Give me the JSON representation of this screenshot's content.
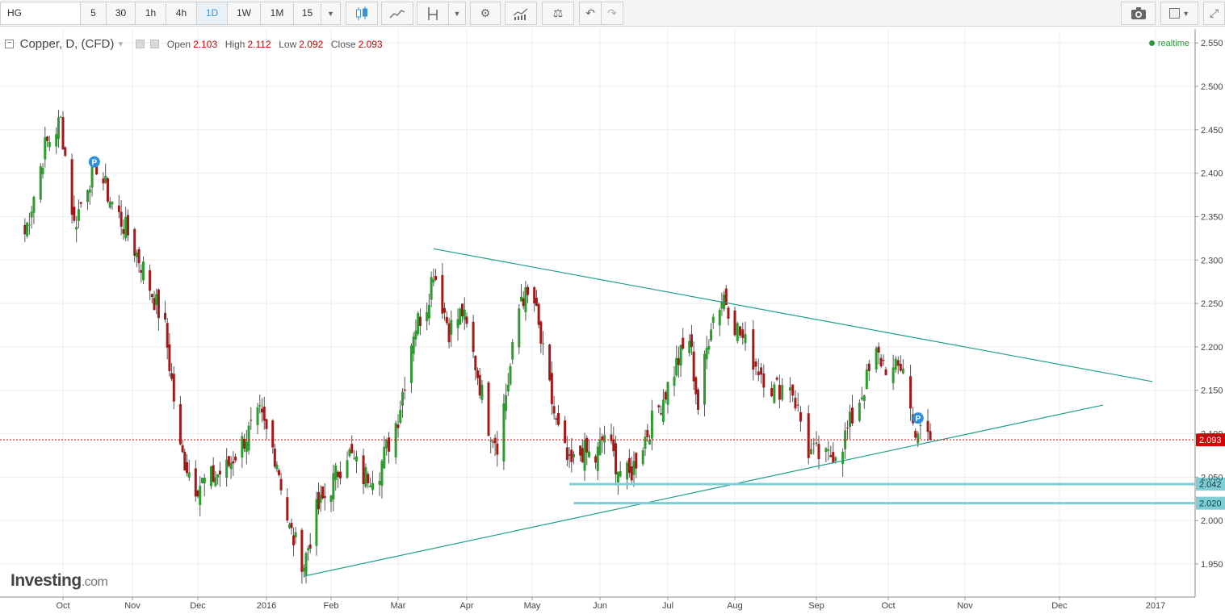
{
  "toolbar": {
    "symbol": "HG",
    "intervals": [
      "5",
      "30",
      "1h",
      "4h",
      "1D",
      "1W",
      "1M",
      "15"
    ],
    "active_interval": "1D",
    "accent": "#3a94d4"
  },
  "legend": {
    "title": "Copper, D, (CFD)",
    "open_label": "Open",
    "open": "2.103",
    "high_label": "High",
    "high": "2.112",
    "low_label": "Low",
    "low": "2.092",
    "close_label": "Close",
    "close": "2.093"
  },
  "status": {
    "realtime": "realtime"
  },
  "logo": {
    "name": "Investing",
    "suffix": ".com"
  },
  "chart_data": {
    "type": "candlestick",
    "price_axis": {
      "ticks": [
        "2.550",
        "2.500",
        "2.450",
        "2.400",
        "2.350",
        "2.300",
        "2.250",
        "2.200",
        "2.150",
        "2.100",
        "2.050",
        "2.000",
        "1.950"
      ],
      "ylim": [
        1.915,
        2.565
      ]
    },
    "time_axis": {
      "labels": [
        "Oct",
        "Nov",
        "Dec",
        "2016",
        "Feb",
        "Mar",
        "Apr",
        "May",
        "Jun",
        "Jul",
        "Aug",
        "Sep",
        "Oct",
        "Nov",
        "Dec",
        "2017"
      ]
    },
    "grid": true,
    "colors": {
      "up": "#2e9b2e",
      "down": "#a11a1a",
      "trendline": "#1d9e8c",
      "support": "#7fcdd5",
      "last_price": "#d50000"
    },
    "last_price": {
      "value": 2.093,
      "label": "2.093"
    },
    "support_levels": [
      {
        "value": 2.042,
        "label": "2.042",
        "from": "2016-05-18"
      },
      {
        "value": 2.02,
        "label": "2.020",
        "from": "2016-05-20"
      }
    ],
    "trendlines": [
      {
        "from": [
          "2016-03-17",
          2.313
        ],
        "to": [
          "2016-12-31",
          2.16
        ]
      },
      {
        "from": [
          "2016-01-19",
          1.936
        ],
        "to": [
          "2016-12-15",
          2.133
        ]
      }
    ],
    "markers": [
      {
        "label": "P",
        "date": "2015-10-15",
        "value": 2.413
      },
      {
        "label": "P",
        "date": "2016-10-13",
        "value": 2.118
      }
    ],
    "close_path": [
      [
        "2015-09-14",
        2.33
      ],
      [
        "2015-09-23",
        2.43
      ],
      [
        "2015-09-30",
        2.46
      ],
      [
        "2015-10-06",
        2.34
      ],
      [
        "2015-10-12",
        2.39
      ],
      [
        "2015-10-16",
        2.41
      ],
      [
        "2015-10-22",
        2.37
      ],
      [
        "2015-10-30",
        2.33
      ],
      [
        "2015-11-06",
        2.29
      ],
      [
        "2015-11-16",
        2.22
      ],
      [
        "2015-11-23",
        2.08
      ],
      [
        "2015-11-30",
        2.04
      ],
      [
        "2015-12-08",
        2.05
      ],
      [
        "2015-12-14",
        2.06
      ],
      [
        "2015-12-21",
        2.09
      ],
      [
        "2015-12-29",
        2.12
      ],
      [
        "2016-01-06",
        2.07
      ],
      [
        "2016-01-12",
        1.99
      ],
      [
        "2016-01-19",
        1.95
      ],
      [
        "2016-01-25",
        2.01
      ],
      [
        "2016-02-01",
        2.04
      ],
      [
        "2016-02-08",
        2.08
      ],
      [
        "2016-02-15",
        2.05
      ],
      [
        "2016-02-22",
        2.06
      ],
      [
        "2016-03-01",
        2.12
      ],
      [
        "2016-03-08",
        2.22
      ],
      [
        "2016-03-14",
        2.25
      ],
      [
        "2016-03-17",
        2.29
      ],
      [
        "2016-03-24",
        2.22
      ],
      [
        "2016-03-30",
        2.24
      ],
      [
        "2016-04-05",
        2.18
      ],
      [
        "2016-04-11",
        2.11
      ],
      [
        "2016-04-15",
        2.09
      ],
      [
        "2016-04-20",
        2.16
      ],
      [
        "2016-04-26",
        2.26
      ],
      [
        "2016-05-02",
        2.25
      ],
      [
        "2016-05-06",
        2.19
      ],
      [
        "2016-05-12",
        2.11
      ],
      [
        "2016-05-18",
        2.06
      ],
      [
        "2016-05-24",
        2.08
      ],
      [
        "2016-05-30",
        2.07
      ],
      [
        "2016-06-03",
        2.1
      ],
      [
        "2016-06-09",
        2.06
      ],
      [
        "2016-06-14",
        2.05
      ],
      [
        "2016-06-20",
        2.09
      ],
      [
        "2016-06-27",
        2.13
      ],
      [
        "2016-07-05",
        2.18
      ],
      [
        "2016-07-11",
        2.21
      ],
      [
        "2016-07-15",
        2.13
      ],
      [
        "2016-07-21",
        2.23
      ],
      [
        "2016-07-27",
        2.26
      ],
      [
        "2016-08-02",
        2.22
      ],
      [
        "2016-08-09",
        2.18
      ],
      [
        "2016-08-16",
        2.15
      ],
      [
        "2016-08-22",
        2.16
      ],
      [
        "2016-08-29",
        2.08
      ],
      [
        "2016-09-05",
        2.07
      ],
      [
        "2016-09-12",
        2.09
      ],
      [
        "2016-09-19",
        2.14
      ],
      [
        "2016-09-26",
        2.19
      ],
      [
        "2016-10-03",
        2.17
      ],
      [
        "2016-10-07",
        2.18
      ],
      [
        "2016-10-11",
        2.11
      ],
      [
        "2016-10-14",
        2.1
      ],
      [
        "2016-10-18",
        2.093
      ]
    ]
  }
}
